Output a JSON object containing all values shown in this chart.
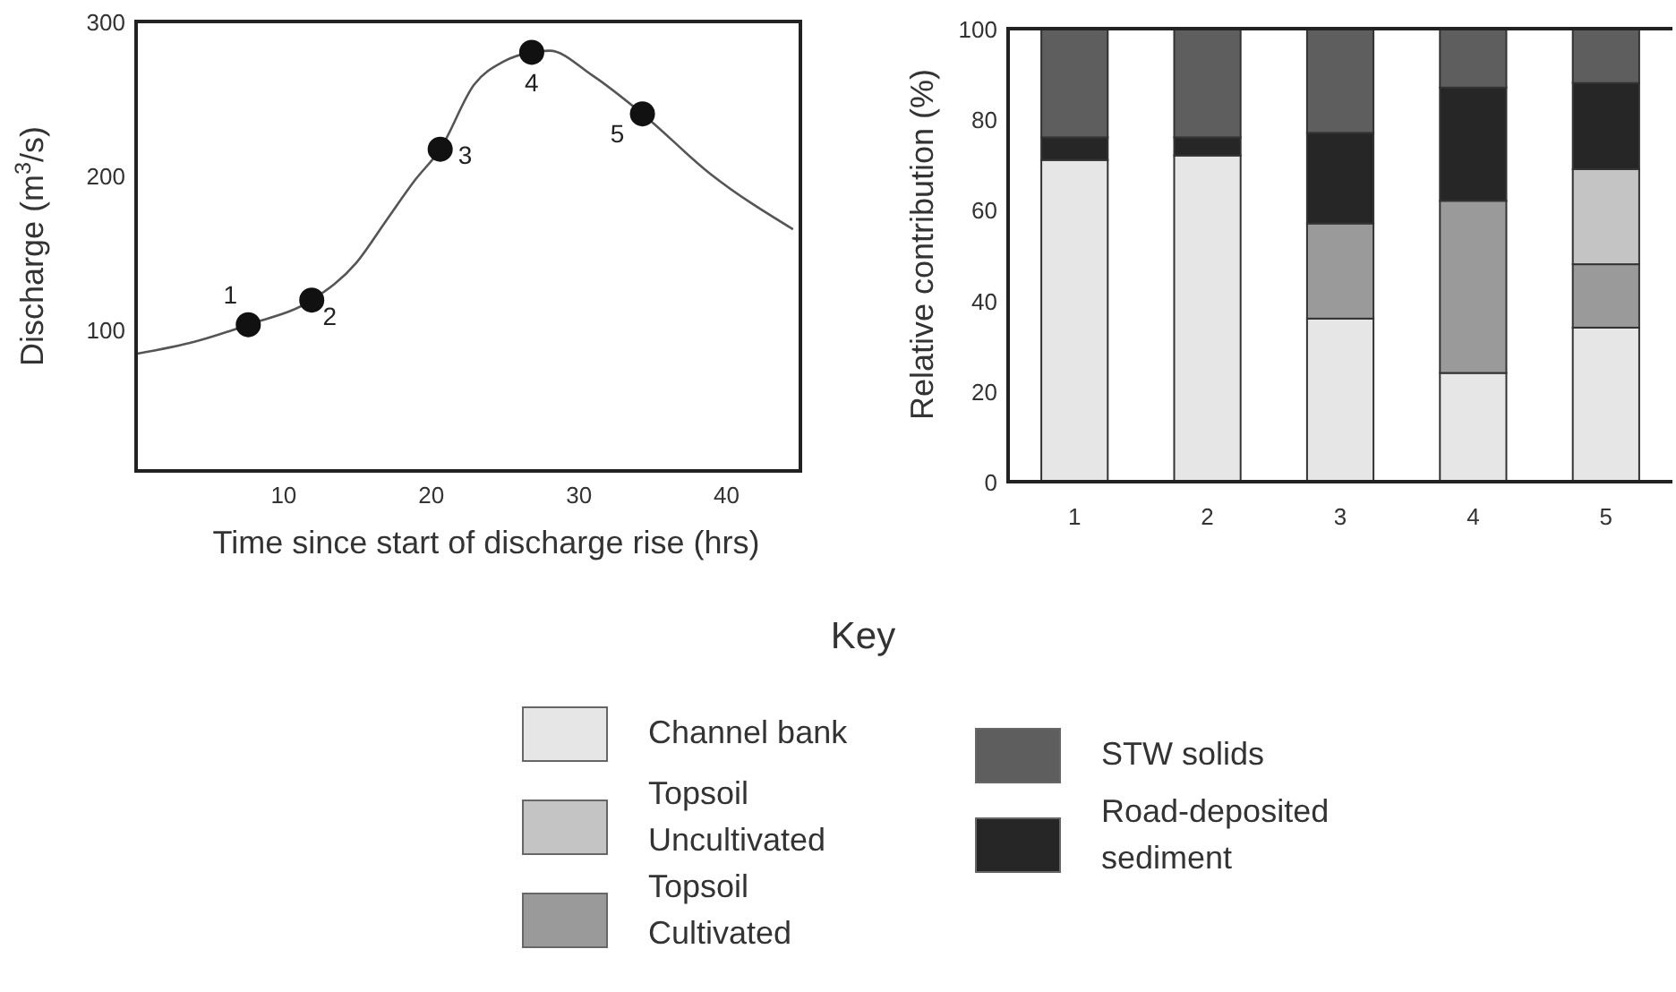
{
  "chart_data": [
    {
      "type": "line",
      "xlabel": "Time since start of discharge rise (hrs)",
      "ylabel": "Discharge (m$^{3}$/s)",
      "xlim": [
        0,
        45
      ],
      "ylim": [
        8,
        300
      ],
      "xticks": [
        10,
        20,
        30,
        40
      ],
      "yticks": [
        100,
        200,
        300
      ],
      "grid": false,
      "series": [
        {
          "type": "line",
          "color": "#555555",
          "marker": "none",
          "x": [
            0,
            4,
            7.6,
            11.9,
            14.9,
            16.9,
            18.9,
            20.6,
            22.9,
            24.9,
            26.8,
            28,
            30.9,
            34.3,
            38.9,
            44.5
          ],
          "values": [
            84,
            92,
            103,
            119,
            143,
            170,
            197,
            217,
            259,
            274,
            280,
            281,
            265,
            240,
            201,
            165
          ]
        },
        {
          "type": "scatter",
          "color": "#111111",
          "marker": "circle",
          "x": [
            7.6,
            11.9,
            20.6,
            26.8,
            34.3
          ],
          "values": [
            103,
            119,
            217,
            280,
            240
          ]
        }
      ],
      "annotations": [
        {
          "text": "1",
          "x": 7.6,
          "y": 103
        },
        {
          "text": "2",
          "x": 11.9,
          "y": 119
        },
        {
          "text": "3",
          "x": 20.6,
          "y": 217
        },
        {
          "text": "4",
          "x": 26.8,
          "y": 280
        },
        {
          "text": "5",
          "x": 34.3,
          "y": 240
        }
      ]
    },
    {
      "type": "bar",
      "stacked": true,
      "categories": [
        "1",
        "2",
        "3",
        "4",
        "5"
      ],
      "ylabel": "Relative contribution (%)",
      "ylim": [
        0,
        100
      ],
      "yticks": [
        0,
        20,
        40,
        60,
        80,
        100
      ],
      "grid": false,
      "legend": "bottom",
      "legend_title": "Key",
      "series": [
        {
          "name": "Channel bank",
          "color": "#e6e6e6",
          "values": [
            71,
            72,
            36,
            24,
            34
          ]
        },
        {
          "name": "Topsoil Cultivated",
          "color": "#9a9a9a",
          "values": [
            0,
            0,
            21,
            38,
            14
          ]
        },
        {
          "name": "Topsoil Uncultivated",
          "color": "#c4c4c4",
          "values": [
            0,
            0,
            0,
            0,
            21
          ]
        },
        {
          "name": "Road-deposited sediment",
          "color": "#262626",
          "values": [
            5,
            4,
            20,
            25,
            19
          ]
        },
        {
          "name": "STW solids",
          "color": "#5e5e5e",
          "values": [
            24,
            24,
            23,
            13,
            12
          ]
        }
      ]
    }
  ]
}
